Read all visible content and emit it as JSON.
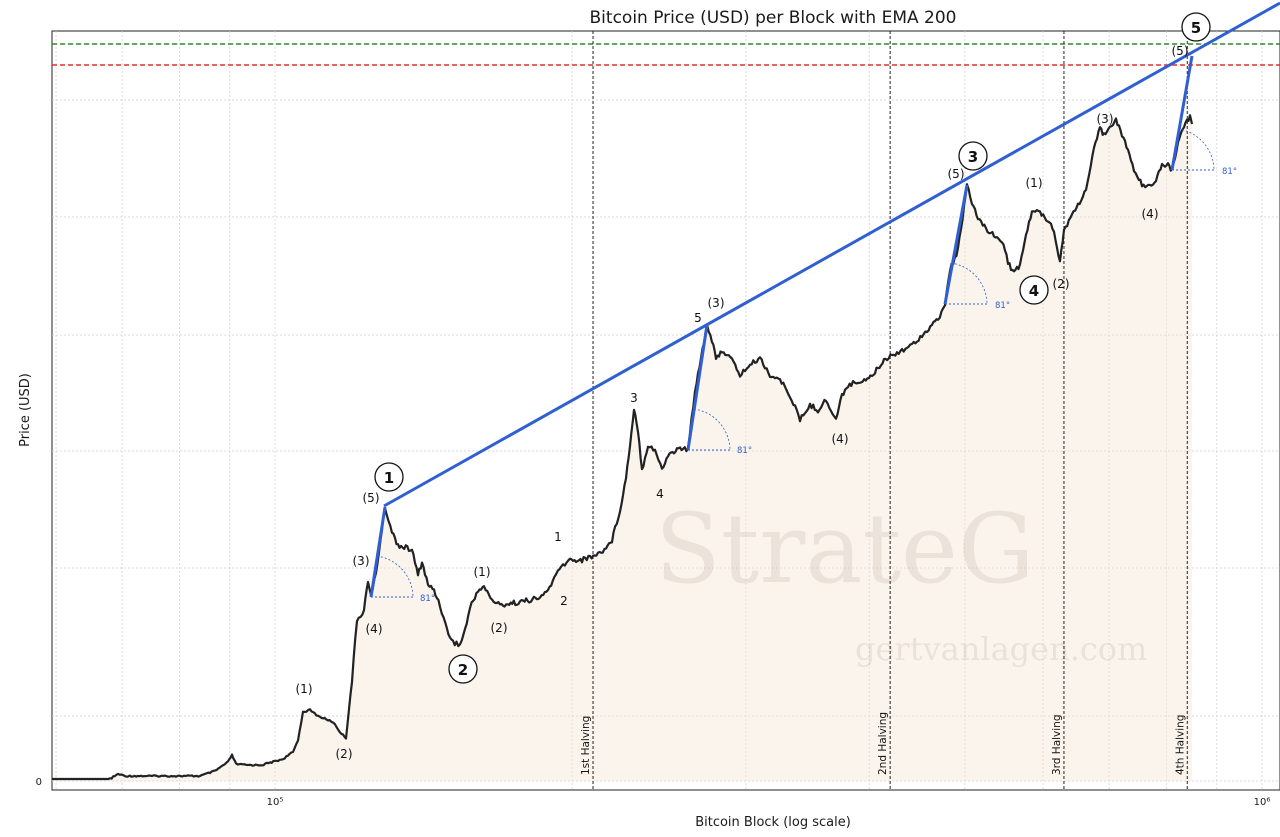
{
  "chart_data": {
    "type": "line",
    "title": "Bitcoin Price (USD) per Block with EMA 200",
    "xlabel": "Bitcoin Block (log scale)",
    "ylabel": "Price (USD)",
    "x_scale": "log",
    "x_ticks": [
      {
        "value": 100000,
        "label": "10⁵"
      },
      {
        "value": 1000000,
        "label": "10⁶"
      }
    ],
    "y_ticks": [
      {
        "value": 0,
        "label": "0"
      }
    ],
    "grid": true,
    "price_line_color": "#222222",
    "trendline_color": "#2f5fd0",
    "horizontal_levels": [
      {
        "style": "dashed",
        "color": "#2e8b2e"
      },
      {
        "style": "dashed",
        "color": "#e03030"
      }
    ],
    "halvings": [
      {
        "block": 210000,
        "label": "1st Halving"
      },
      {
        "block": 420000,
        "label": "2nd Halving"
      },
      {
        "block": 630000,
        "label": "3rd Halving"
      },
      {
        "block": 840000,
        "label": "4th Halving"
      }
    ],
    "wave_labels_major": [
      "1",
      "2",
      "3",
      "4",
      "5"
    ],
    "wave_labels_minor": [
      "(1)",
      "(2)",
      "(3)",
      "(4)",
      "(5)",
      "1",
      "2",
      "3",
      "4",
      "5"
    ],
    "angle_label": "81°",
    "watermark": {
      "brand": "StrateG",
      "site": "gertvanlagen.com"
    }
  }
}
